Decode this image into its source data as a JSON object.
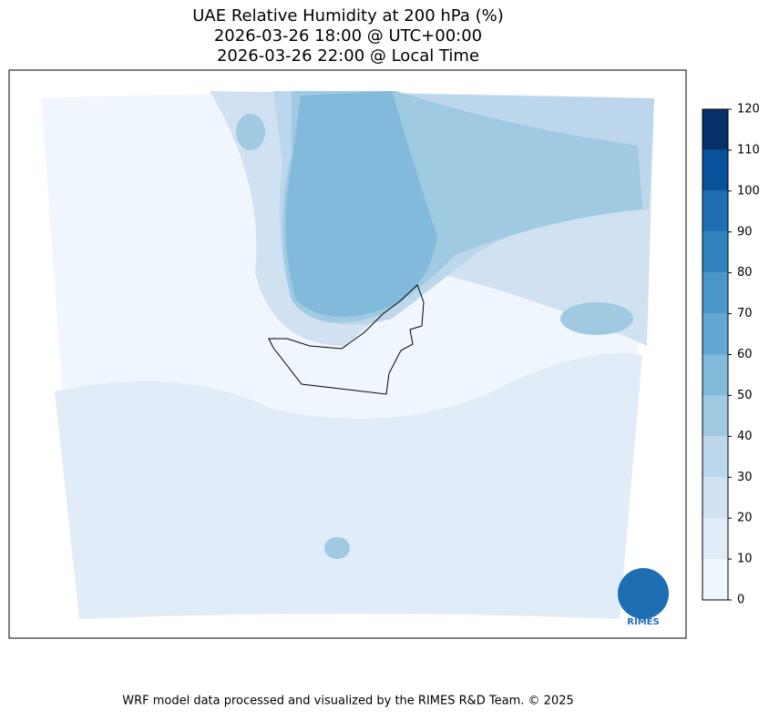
{
  "title": [
    "UAE Relative Humidity at 200 hPa (%)",
    "2026-03-26 18:00 @ UTC+00:00",
    "2026-03-26 22:00 @ Local Time"
  ],
  "colorbar": {
    "levels": [
      0,
      10,
      20,
      30,
      40,
      50,
      60,
      70,
      80,
      90,
      100,
      110,
      120
    ],
    "colors": [
      "#f0f6fd",
      "#e0ecf8",
      "#d0e1f2",
      "#bcd7eb",
      "#9fcae1",
      "#82badb",
      "#62a8d3",
      "#4a97c9",
      "#3282be",
      "#1f6eb3",
      "#08529c",
      "#08306b"
    ]
  },
  "logo": {
    "label": "RIMES"
  },
  "footer": "WRF model data processed and visualized by the RIMES R&D Team. © 2025"
}
